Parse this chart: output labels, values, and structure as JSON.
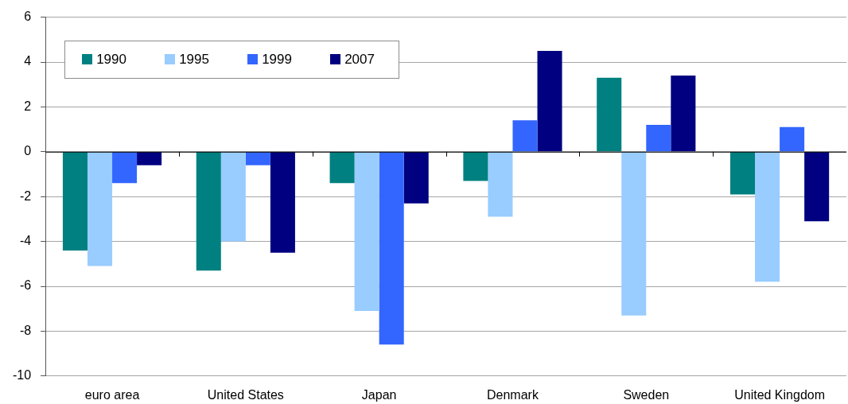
{
  "chart_data": {
    "type": "bar",
    "categories": [
      "euro area",
      "United States",
      "Japan",
      "Denmark",
      "Sweden",
      "United Kingdom"
    ],
    "series": [
      {
        "name": "1990",
        "color": "#008080",
        "values": [
          -4.4,
          -5.3,
          -1.4,
          -1.3,
          3.3,
          -1.9
        ]
      },
      {
        "name": "1995",
        "color": "#99ccff",
        "values": [
          -5.1,
          -4.0,
          -7.1,
          -2.9,
          -7.3,
          -5.8
        ]
      },
      {
        "name": "1999",
        "color": "#3366ff",
        "values": [
          -1.4,
          -0.6,
          -8.6,
          1.4,
          1.2,
          1.1
        ]
      },
      {
        "name": "2007",
        "color": "#000080",
        "values": [
          -0.6,
          -4.5,
          -2.3,
          4.5,
          3.4,
          -3.1
        ]
      }
    ],
    "ylim": [
      -10,
      6
    ],
    "yticks": [
      -10,
      -8,
      -6,
      -4,
      -2,
      0,
      2,
      4,
      6
    ],
    "grid": "y",
    "legend": "top left"
  }
}
